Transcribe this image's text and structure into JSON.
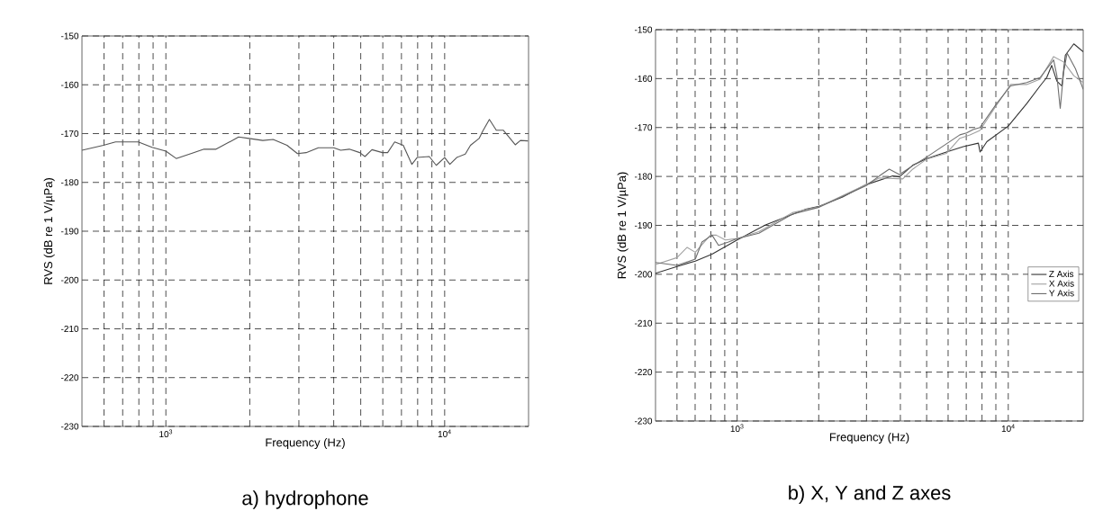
{
  "chart_data": [
    {
      "type": "line",
      "title": "a) hydrophone",
      "xlabel": "Frequency (Hz)",
      "ylabel": "RVS (dB re 1 V/µPa)",
      "log": "x",
      "grid": true,
      "legend": false,
      "marker": "none",
      "line_style": "solid",
      "xlim": [
        500,
        20000
      ],
      "ylim": [
        -230,
        -150
      ],
      "xticks": [
        {
          "value": 600,
          "label": null
        },
        {
          "value": 700,
          "label": null
        },
        {
          "value": 800,
          "label": null
        },
        {
          "value": 900,
          "label": null
        },
        {
          "value": 1000,
          "label": "10$^{3}$"
        },
        {
          "value": 2000,
          "label": null
        },
        {
          "value": 3000,
          "label": null
        },
        {
          "value": 4000,
          "label": null
        },
        {
          "value": 5000,
          "label": null
        },
        {
          "value": 6000,
          "label": null
        },
        {
          "value": 7000,
          "label": null
        },
        {
          "value": 8000,
          "label": null
        },
        {
          "value": 9000,
          "label": null
        },
        {
          "value": 10000,
          "label": "10$^{4}$"
        }
      ],
      "yticks": [
        -230,
        -220,
        -210,
        -200,
        -190,
        -180,
        -170,
        -160,
        -150
      ],
      "series": [
        {
          "color": "#555555",
          "x": [
            500,
            597,
            660,
            796,
            892,
            1000,
            1089,
            1257,
            1370,
            1514,
            1824,
            1987,
            2228,
            2426,
            2720,
            2965,
            3186,
            3523,
            4001,
            4237,
            4550,
            4960,
            5177,
            5486,
            5981,
            6246,
            6620,
            7105,
            7630,
            7969,
            8808,
            9330,
            10000,
            10440,
            11050,
            11860,
            12380,
            13290,
            13670,
            14470,
            15320,
            16220,
            17170,
            17920,
            18700,
            19900
          ],
          "values": [
            -173.4,
            -172.4,
            -171.7,
            -171.7,
            -172.8,
            -173.6,
            -175.1,
            -173.9,
            -173.2,
            -173.2,
            -170.7,
            -171.0,
            -171.4,
            -171.2,
            -172.4,
            -174.1,
            -173.9,
            -172.9,
            -172.9,
            -173.4,
            -173.2,
            -173.9,
            -174.7,
            -173.3,
            -173.9,
            -173.9,
            -171.7,
            -172.4,
            -176.3,
            -174.9,
            -174.7,
            -176.5,
            -174.9,
            -176.3,
            -174.9,
            -174.2,
            -172.4,
            -171.0,
            -169.6,
            -167.1,
            -169.3,
            -169.3,
            -171.0,
            -172.3,
            -171.4,
            -171.5
          ]
        }
      ]
    },
    {
      "type": "line",
      "title": "b) X, Y and Z axes",
      "xlabel": "Frequency (Hz)",
      "ylabel": "RVS (dB re 1 V/µPa)",
      "log": "x",
      "grid": true,
      "legend": "right",
      "marker": "none",
      "line_style": "solid",
      "xlim": [
        500,
        18900
      ],
      "ylim": [
        -230,
        -150
      ],
      "xticks": [
        {
          "value": 600,
          "label": null
        },
        {
          "value": 700,
          "label": null
        },
        {
          "value": 800,
          "label": null
        },
        {
          "value": 900,
          "label": null
        },
        {
          "value": 1000,
          "label": "10$^{3}$"
        },
        {
          "value": 2000,
          "label": null
        },
        {
          "value": 3000,
          "label": null
        },
        {
          "value": 4000,
          "label": null
        },
        {
          "value": 5000,
          "label": null
        },
        {
          "value": 6000,
          "label": null
        },
        {
          "value": 7000,
          "label": null
        },
        {
          "value": 8000,
          "label": null
        },
        {
          "value": 9000,
          "label": null
        },
        {
          "value": 10000,
          "label": "10$^{4}$"
        }
      ],
      "yticks": [
        -230,
        -220,
        -210,
        -200,
        -190,
        -180,
        -170,
        -160,
        -150
      ],
      "series": [
        {
          "name": "Z Axis",
          "color": "#333333",
          "x": [
            500,
            600,
            701,
            808,
            1000,
            1273,
            1791,
            2007,
            2449,
            2985,
            3748,
            3967,
            4446,
            4985,
            5910,
            6823,
            7757,
            7870,
            8336,
            10000,
            11700,
            13100,
            13860,
            14460,
            15110,
            15770,
            16240,
            17450,
            18900
          ],
          "values": [
            -199.8,
            -198.4,
            -197.3,
            -195.9,
            -193.0,
            -189.9,
            -186.7,
            -186.1,
            -184.2,
            -181.7,
            -179.9,
            -180.1,
            -177.7,
            -176.4,
            -175.0,
            -173.9,
            -173.2,
            -175.0,
            -172.9,
            -169.7,
            -165.1,
            -161.5,
            -159.8,
            -157.3,
            -160.5,
            -161.5,
            -155.2,
            -152.9,
            -154.5
          ]
        },
        {
          "name": "X Axis",
          "color": "#a0a0a0",
          "x": [
            500,
            600,
            654,
            701,
            797,
            838,
            905,
            1000,
            1203,
            1599,
            2007,
            2985,
            3346,
            4081,
            4446,
            4985,
            5910,
            6630,
            7220,
            7860,
            9060,
            10200,
            11700,
            13100,
            14700,
            16000,
            17450,
            18900
          ],
          "values": [
            -198.0,
            -196.6,
            -194.5,
            -195.5,
            -192.0,
            -192.0,
            -193.0,
            -192.7,
            -191.3,
            -187.4,
            -186.2,
            -181.7,
            -180.3,
            -180.5,
            -178.5,
            -176.5,
            -175.3,
            -172.2,
            -171.5,
            -170.6,
            -165.4,
            -161.2,
            -161.2,
            -160.1,
            -155.5,
            -156.6,
            -159.4,
            -160.8
          ]
        },
        {
          "name": "Y Axis",
          "color": "#6e6e6e",
          "x": [
            500,
            600,
            701,
            742,
            808,
            854,
            929,
            1000,
            1203,
            1599,
            2007,
            2985,
            3346,
            3639,
            3967,
            4446,
            4985,
            6630,
            7020,
            7420,
            7860,
            9060,
            10200,
            11700,
            13100,
            14700,
            15110,
            15550,
            16000,
            16480,
            17700,
            18900
          ],
          "values": [
            -197.6,
            -198.2,
            -196.9,
            -193.4,
            -192.0,
            -194.1,
            -193.4,
            -192.7,
            -191.6,
            -187.7,
            -186.3,
            -181.9,
            -179.9,
            -178.5,
            -179.6,
            -177.8,
            -176.1,
            -171.5,
            -171.1,
            -170.4,
            -170.0,
            -165.1,
            -161.5,
            -160.8,
            -159.8,
            -156.2,
            -159.4,
            -166.1,
            -158.7,
            -154.8,
            -158.0,
            -162.2
          ]
        }
      ]
    }
  ]
}
